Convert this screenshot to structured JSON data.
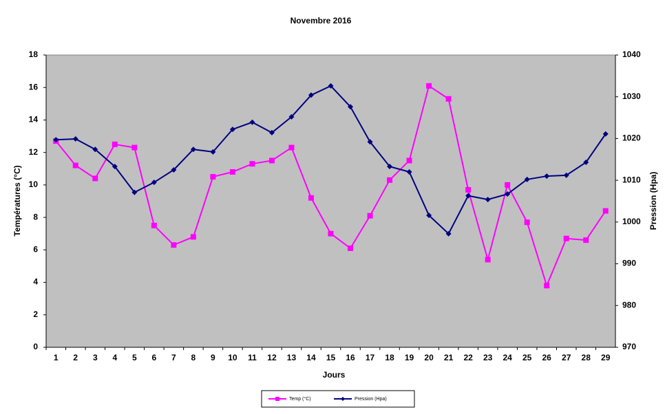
{
  "chart_data": {
    "type": "line",
    "title": "Novembre 2016",
    "x_label": "Jours",
    "y_label": "Températures (°C)",
    "y2_label": "Pression (Hpa)",
    "categories": [
      "1",
      "2",
      "3",
      "4",
      "5",
      "6",
      "7",
      "8",
      "9",
      "10",
      "11",
      "12",
      "13",
      "14",
      "15",
      "16",
      "17",
      "18",
      "19",
      "20",
      "21",
      "22",
      "23",
      "24",
      "25",
      "26",
      "27",
      "28",
      "29"
    ],
    "series": [
      {
        "name": "Temp (°C)",
        "color": "#ff00ff",
        "marker": "square",
        "values": [
          12.7,
          11.2,
          10.4,
          12.5,
          12.3,
          7.5,
          6.3,
          6.8,
          10.5,
          10.8,
          11.3,
          11.5,
          12.3,
          9.2,
          7.0,
          6.1,
          8.1,
          10.3,
          11.5,
          16.1,
          15.3,
          9.7,
          5.4,
          10.0,
          7.7,
          3.8,
          6.7,
          6.6,
          8.4
        ]
      },
      {
        "name": "Pression (Hpa)",
        "color": "#000080",
        "marker": "diamond",
        "axis": "y2",
        "values": [
          1019.7,
          1019.9,
          1017.4,
          1013.3,
          1007.1,
          1009.5,
          1012.5,
          1017.4,
          1016.8,
          1022.2,
          1023.9,
          1021.4,
          1025.2,
          1030.4,
          1032.6,
          1027.6,
          1019.2,
          1013.3,
          1012.0,
          1001.6,
          997.2,
          1006.3,
          1005.4,
          1006.7,
          1010.2,
          1011.0,
          1011.2,
          1014.3,
          1021.1
        ]
      }
    ],
    "ylim": [
      0,
      18
    ],
    "yticks": [
      0,
      2,
      4,
      6,
      8,
      10,
      12,
      14,
      16,
      18
    ],
    "y2lim": [
      970,
      1040
    ],
    "y2ticks": [
      970,
      980,
      990,
      1000,
      1010,
      1020,
      1030,
      1040
    ],
    "legend": "bottom",
    "plot_background": "#c0c0c0"
  }
}
